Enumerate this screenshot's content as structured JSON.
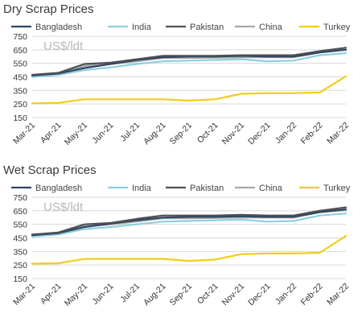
{
  "chart_data": [
    {
      "type": "line",
      "title": "Dry Scrap Prices",
      "unit_label": "US$/ldt",
      "categories": [
        "Mar-21",
        "Apr-21",
        "May-21",
        "Jun-21",
        "Jul-21",
        "Aug-21",
        "Sep-21",
        "Oct-21",
        "Nov-21",
        "Dec-21",
        "Jan-22",
        "Feb-22",
        "Mar-22"
      ],
      "ylim": [
        150,
        750
      ],
      "yticks": [
        150,
        250,
        350,
        450,
        550,
        650,
        750
      ],
      "grid": true,
      "legend_position": "top",
      "series": [
        {
          "name": "Bangladesh",
          "color": "#2f4560",
          "values": [
            460,
            475,
            515,
            545,
            575,
            595,
            600,
            600,
            605,
            600,
            600,
            630,
            650
          ]
        },
        {
          "name": "India",
          "color": "#8ecfe0",
          "values": [
            450,
            465,
            500,
            520,
            545,
            565,
            570,
            575,
            580,
            565,
            570,
            610,
            625
          ]
        },
        {
          "name": "Pakistan",
          "color": "#4d4f55",
          "values": [
            465,
            480,
            545,
            555,
            580,
            605,
            605,
            605,
            610,
            610,
            610,
            640,
            665
          ]
        },
        {
          "name": "China",
          "color": "#a8a8a8",
          "values": [
            455,
            470,
            530,
            545,
            565,
            590,
            590,
            592,
            595,
            595,
            595,
            630,
            650
          ]
        },
        {
          "name": "Turkey",
          "color": "#f2cc1a",
          "values": [
            255,
            258,
            285,
            285,
            285,
            285,
            275,
            285,
            325,
            330,
            330,
            335,
            455
          ]
        }
      ]
    },
    {
      "type": "line",
      "title": "Wet Scrap Prices",
      "unit_label": "US$/ldt",
      "categories": [
        "Mar-21",
        "Apr-21",
        "May-21",
        "Jun-21",
        "Jul-21",
        "Aug-21",
        "Sep-21",
        "Oct-21",
        "Nov-21",
        "Dec-21",
        "Jan-22",
        "Feb-22",
        "Mar-22"
      ],
      "ylim": [
        150,
        750
      ],
      "yticks": [
        150,
        250,
        350,
        450,
        550,
        650,
        750
      ],
      "grid": true,
      "legend_position": "top",
      "series": [
        {
          "name": "Bangladesh",
          "color": "#2f4560",
          "values": [
            470,
            485,
            530,
            555,
            580,
            600,
            605,
            605,
            610,
            605,
            605,
            640,
            660
          ]
        },
        {
          "name": "India",
          "color": "#8ecfe0",
          "values": [
            460,
            475,
            515,
            530,
            550,
            570,
            575,
            580,
            585,
            570,
            575,
            615,
            630
          ]
        },
        {
          "name": "Pakistan",
          "color": "#4d4f55",
          "values": [
            475,
            490,
            550,
            560,
            590,
            615,
            615,
            615,
            620,
            615,
            615,
            650,
            675
          ]
        },
        {
          "name": "China",
          "color": "#a8a8a8",
          "values": [
            465,
            480,
            535,
            550,
            570,
            595,
            595,
            597,
            600,
            600,
            600,
            640,
            655
          ]
        },
        {
          "name": "Turkey",
          "color": "#f2cc1a",
          "values": [
            260,
            262,
            295,
            295,
            295,
            295,
            280,
            290,
            330,
            335,
            335,
            340,
            465
          ]
        }
      ]
    }
  ]
}
